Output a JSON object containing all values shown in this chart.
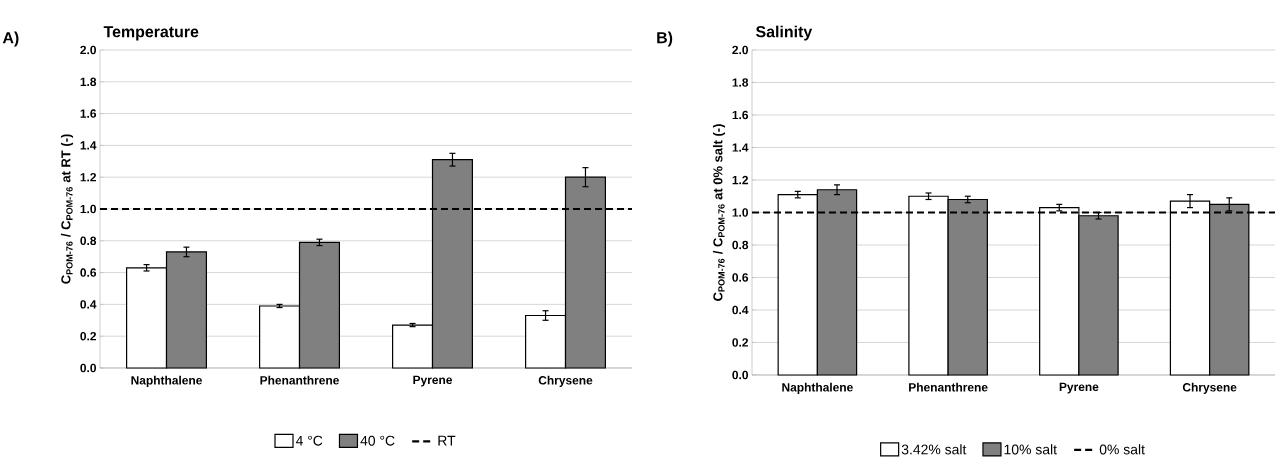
{
  "chart_data": [
    {
      "type": "bar",
      "title": "Temperature",
      "annotations": [
        "A)"
      ],
      "ylabel": "C$_{POM-76}$ / C$_{POM-76}$ at RT (-)",
      "categories": [
        "Naphthalene",
        "Phenanthrene",
        "Pyrene",
        "Chrysene"
      ],
      "series": [
        {
          "name": "4 °C",
          "color": "#ffffff",
          "values": [
            0.63,
            0.39,
            0.27,
            0.33
          ],
          "errors": [
            0.02,
            0.01,
            0.01,
            0.03
          ]
        },
        {
          "name": "40 °C",
          "color": "#808080",
          "values": [
            0.73,
            0.79,
            1.31,
            1.2
          ],
          "errors": [
            0.03,
            0.02,
            0.04,
            0.06
          ]
        }
      ],
      "ylim": [
        0,
        2
      ],
      "yticks": [
        {
          "value": 0,
          "label": "0.0"
        },
        {
          "value": 0.2,
          "label": "0.2"
        },
        {
          "value": 0.4,
          "label": "0.4"
        },
        {
          "value": 0.6,
          "label": "0.6"
        },
        {
          "value": 0.8,
          "label": "0.8"
        },
        {
          "value": 1,
          "label": "1.0"
        },
        {
          "value": 1.2,
          "label": "1.2"
        },
        {
          "value": 1.4,
          "label": "1.4"
        },
        {
          "value": 1.6,
          "label": "1.6"
        },
        {
          "value": 1.8,
          "label": "1.8"
        },
        {
          "value": 2,
          "label": "2.0"
        }
      ],
      "ref_lines": [
        {
          "axis": "y",
          "value": 1,
          "label": "RT",
          "color": "#000000",
          "line_style": "dashed"
        }
      ],
      "grid": "y",
      "legend": "bottom"
    },
    {
      "type": "bar",
      "title": "Salinity",
      "annotations": [
        "B)"
      ],
      "ylabel": "C$_{POM-76}$ / C$_{POM-76}$ at 0% salt (-)",
      "categories": [
        "Naphthalene",
        "Phenanthrene",
        "Pyrene",
        "Chrysene"
      ],
      "series": [
        {
          "name": "3.42% salt",
          "color": "#ffffff",
          "values": [
            1.11,
            1.1,
            1.03,
            1.07
          ],
          "errors": [
            0.02,
            0.02,
            0.02,
            0.04
          ]
        },
        {
          "name": "10% salt",
          "color": "#808080",
          "values": [
            1.14,
            1.08,
            0.98,
            1.05
          ],
          "errors": [
            0.03,
            0.02,
            0.02,
            0.04
          ]
        }
      ],
      "ylim": [
        0,
        2
      ],
      "yticks": [
        {
          "value": 0,
          "label": "0.0"
        },
        {
          "value": 0.2,
          "label": "0.2"
        },
        {
          "value": 0.4,
          "label": "0.4"
        },
        {
          "value": 0.6,
          "label": "0.6"
        },
        {
          "value": 0.8,
          "label": "0.8"
        },
        {
          "value": 1,
          "label": "1.0"
        },
        {
          "value": 1.2,
          "label": "1.2"
        },
        {
          "value": 1.4,
          "label": "1.4"
        },
        {
          "value": 1.6,
          "label": "1.6"
        },
        {
          "value": 1.8,
          "label": "1.8"
        },
        {
          "value": 2,
          "label": "2.0"
        }
      ],
      "ref_lines": [
        {
          "axis": "y",
          "value": 1,
          "label": "0% salt",
          "color": "#000000",
          "line_style": "dashed"
        }
      ],
      "grid": "y",
      "legend": "bottom"
    }
  ]
}
